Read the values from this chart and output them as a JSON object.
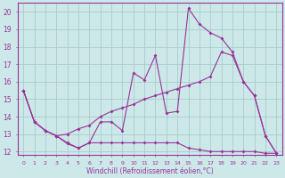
{
  "background_color": "#cce8e8",
  "grid_color": "#aacccc",
  "line_color": "#993399",
  "xlabel": "Windchill (Refroidissement éolien,°C)",
  "xlim": [
    -0.5,
    23.5
  ],
  "ylim": [
    11.8,
    20.5
  ],
  "yticks": [
    12,
    13,
    14,
    15,
    16,
    17,
    18,
    19,
    20
  ],
  "xtick_labels": [
    "0",
    "1",
    "2",
    "3",
    "4",
    "5",
    "6",
    "7",
    "8",
    "9",
    "10",
    "11",
    "12",
    "13",
    "14",
    "15",
    "16",
    "17",
    "18",
    "19",
    "20",
    "21",
    "22",
    "23"
  ],
  "line1_x": [
    0,
    1,
    2,
    3,
    4,
    5,
    6,
    7,
    8,
    9,
    10,
    11,
    12,
    13,
    14,
    15,
    16,
    17,
    18,
    19,
    20,
    21,
    22,
    23
  ],
  "line1_y": [
    15.5,
    13.7,
    13.2,
    12.9,
    12.45,
    12.2,
    12.5,
    13.7,
    13.7,
    13.2,
    16.5,
    16.1,
    17.5,
    14.2,
    14.3,
    20.2,
    19.3,
    18.8,
    18.5,
    17.7,
    16.0,
    15.2,
    12.9,
    11.9
  ],
  "line2_x": [
    0,
    1,
    2,
    3,
    4,
    5,
    6,
    7,
    8,
    9,
    10,
    11,
    12,
    13,
    14,
    15,
    16,
    17,
    18,
    19,
    20,
    21,
    22,
    23
  ],
  "line2_y": [
    15.5,
    13.7,
    13.2,
    12.9,
    12.5,
    12.2,
    12.5,
    12.5,
    12.5,
    12.5,
    12.5,
    12.5,
    12.5,
    12.5,
    12.5,
    12.2,
    12.1,
    12.0,
    12.0,
    12.0,
    12.0,
    12.0,
    11.9,
    11.9
  ],
  "line3_x": [
    0,
    1,
    2,
    3,
    4,
    5,
    6,
    7,
    8,
    9,
    10,
    11,
    12,
    13,
    14,
    15,
    16,
    17,
    18,
    19,
    20,
    21,
    22,
    23
  ],
  "line3_y": [
    15.5,
    13.7,
    13.2,
    12.9,
    13.0,
    13.3,
    13.5,
    14.0,
    14.3,
    14.5,
    14.7,
    15.0,
    15.2,
    15.4,
    15.6,
    15.8,
    16.0,
    16.3,
    17.7,
    17.5,
    16.0,
    15.2,
    12.9,
    11.9
  ]
}
